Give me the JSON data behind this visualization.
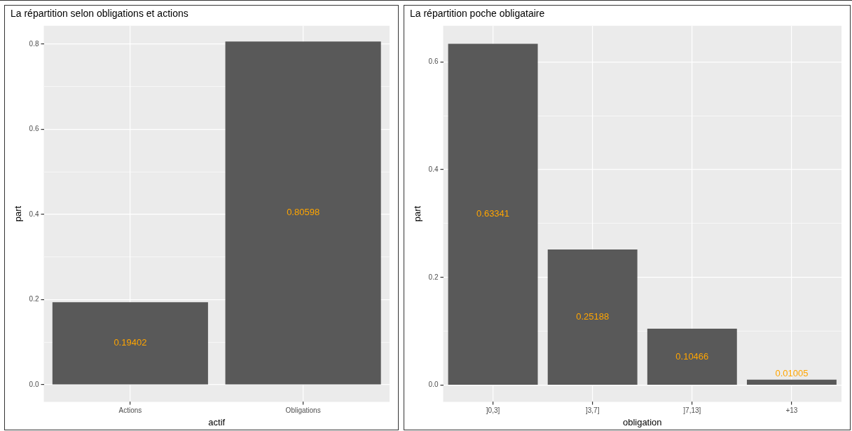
{
  "chart_data": [
    {
      "type": "bar",
      "title": "La répartition selon obligations et actions",
      "xlabel": "actif",
      "ylabel": "part",
      "categories": [
        "Actions",
        "Obligations"
      ],
      "values": [
        0.19402,
        0.80598
      ],
      "color": "#595959",
      "ylim": [
        -0.04,
        0.843
      ],
      "yticks": [
        {
          "value": 0,
          "label": "0.0"
        },
        {
          "value": 0.1,
          "label": null
        },
        0.2,
        {
          "value": 0.3,
          "label": null
        },
        0.4,
        {
          "value": 0.5,
          "label": null
        },
        0.6,
        {
          "value": 0.7,
          "label": null
        },
        0.8
      ],
      "grid": true,
      "data_labels": true,
      "legend": false
    },
    {
      "type": "bar",
      "title": "La répartition poche obligataire",
      "xlabel": "obligation",
      "ylabel": "part",
      "categories": [
        "]0,3]",
        "]3,7]",
        "]7,13]",
        "+13"
      ],
      "values": [
        0.63341,
        0.25188,
        0.10466,
        0.01005
      ],
      "color": "#595959",
      "ylim": [
        -0.031,
        0.667
      ],
      "yticks": [
        {
          "value": 0,
          "label": "0.0"
        },
        {
          "value": 0.1,
          "label": null
        },
        0.2,
        {
          "value": 0.3,
          "label": null
        },
        0.4,
        {
          "value": 0.5,
          "label": null
        },
        0.6
      ],
      "grid": true,
      "data_labels": true,
      "legend": false
    }
  ]
}
